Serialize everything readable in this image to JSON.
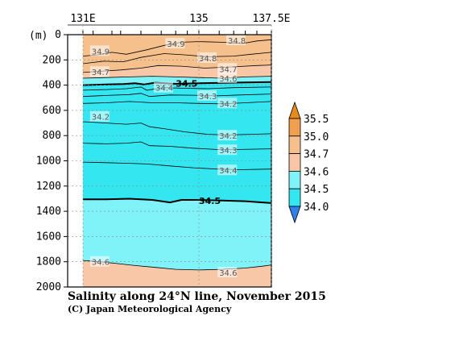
{
  "chart_data": {
    "type": "contour",
    "title": "Salinity along 24°N line, November 2015",
    "credit": "(C) Japan Meteorological Agency",
    "x_axis": {
      "range": [
        131,
        137.5
      ],
      "ticks": [
        {
          "value": 131,
          "label": "131E"
        },
        {
          "value": 135,
          "label": "135"
        },
        {
          "value": 137.5,
          "label": "137.5E"
        }
      ]
    },
    "y_axis": {
      "unit_label": "(m)",
      "range": [
        0,
        2000
      ],
      "inverted": true,
      "ticks": [
        0,
        200,
        400,
        600,
        800,
        1000,
        1200,
        1400,
        1600,
        1800,
        2000
      ]
    },
    "colorbar": {
      "levels": [
        34.0,
        34.5,
        34.6,
        34.7,
        35.0,
        35.5
      ],
      "labels": [
        "35.5",
        "35.0",
        "34.7",
        "34.6",
        "34.5",
        "34.0"
      ],
      "bands": [
        {
          "from": 34.0,
          "to": 34.5,
          "color": "#33e6f0"
        },
        {
          "from": 34.5,
          "to": 34.6,
          "color": "#7ff3f8"
        },
        {
          "from": 34.6,
          "to": 34.7,
          "color": "#f7c7a8"
        },
        {
          "from": 34.7,
          "to": 35.0,
          "color": "#f6c08c"
        },
        {
          "from": 35.0,
          "to": 35.5,
          "color": "#f0a050"
        }
      ],
      "under_color": "#2f80e8",
      "over_color": "#e88a1a"
    },
    "regions": [
      {
        "name": "surface 34.7-35.0",
        "top": [
          [
            131,
            0
          ],
          [
            137.5,
            0
          ]
        ],
        "bottom_depth": 330,
        "color": "#f6c08c"
      },
      {
        "name": "34.6-34.7 layer",
        "bottom_depth": 380,
        "color": "#f7c7a8"
      },
      {
        "name": "34.5-34.6 layer",
        "bottom_depth": 420,
        "color": "#7ff3f8"
      },
      {
        "name": "intermediate <34.5",
        "bottom_depth": 1330,
        "color": "#33e6f0"
      },
      {
        "name": "deep 34.5-34.6",
        "bottom_depth": 1820,
        "color": "#7ff3f8"
      },
      {
        "name": "bottom 34.6-34.7",
        "bottom_depth": 2000,
        "color": "#f7c7a8"
      }
    ],
    "contour_labels": [
      {
        "text": "34.9",
        "lon": 131.3,
        "depth": 130,
        "bold": false
      },
      {
        "text": "34.9",
        "lon": 133.9,
        "depth": 70,
        "bold": false
      },
      {
        "text": "34.8",
        "lon": 136.0,
        "depth": 45,
        "bold": false
      },
      {
        "text": "34.8",
        "lon": 135.0,
        "depth": 185,
        "bold": false
      },
      {
        "text": "34.7",
        "lon": 131.3,
        "depth": 295,
        "bold": false
      },
      {
        "text": "34.7",
        "lon": 135.7,
        "depth": 270,
        "bold": false
      },
      {
        "text": "34.6",
        "lon": 135.7,
        "depth": 345,
        "bold": false
      },
      {
        "text": "34.5",
        "lon": 134.2,
        "depth": 385,
        "bold": true
      },
      {
        "text": "34.4",
        "lon": 133.5,
        "depth": 420,
        "bold": false
      },
      {
        "text": "34.3",
        "lon": 135.0,
        "depth": 485,
        "bold": false
      },
      {
        "text": "34.2",
        "lon": 135.7,
        "depth": 545,
        "bold": false
      },
      {
        "text": "34.2",
        "lon": 131.3,
        "depth": 650,
        "bold": false
      },
      {
        "text": "34.2",
        "lon": 135.7,
        "depth": 800,
        "bold": false
      },
      {
        "text": "34.3",
        "lon": 135.7,
        "depth": 915,
        "bold": false
      },
      {
        "text": "34.4",
        "lon": 135.7,
        "depth": 1075,
        "bold": false
      },
      {
        "text": "34.5",
        "lon": 135.0,
        "depth": 1315,
        "bold": true
      },
      {
        "text": "34.6",
        "lon": 131.3,
        "depth": 1800,
        "bold": false
      },
      {
        "text": "34.6",
        "lon": 135.7,
        "depth": 1885,
        "bold": false
      }
    ],
    "contours": [
      {
        "level": 34.9,
        "bold": false,
        "points": [
          [
            131.0,
            170
          ],
          [
            131.5,
            160
          ],
          [
            132.0,
            140
          ],
          [
            132.5,
            155
          ],
          [
            133.2,
            120
          ],
          [
            133.8,
            85
          ],
          [
            134.4,
            60
          ],
          [
            135.0,
            55
          ],
          [
            135.8,
            60
          ],
          [
            136.5,
            70
          ],
          [
            137.0,
            50
          ],
          [
            137.5,
            40
          ]
        ]
      },
      {
        "level": 34.8,
        "bold": false,
        "points": [
          [
            131.0,
            230
          ],
          [
            131.7,
            210
          ],
          [
            132.4,
            215
          ],
          [
            133.0,
            180
          ],
          [
            133.8,
            150
          ],
          [
            134.5,
            160
          ],
          [
            135.3,
            175
          ],
          [
            136.2,
            170
          ],
          [
            136.8,
            155
          ],
          [
            137.5,
            140
          ]
        ]
      },
      {
        "level": 34.7,
        "bold": false,
        "points": [
          [
            131.0,
            300
          ],
          [
            131.6,
            290
          ],
          [
            132.3,
            280
          ],
          [
            133.0,
            265
          ],
          [
            133.6,
            245
          ],
          [
            134.4,
            250
          ],
          [
            135.2,
            265
          ],
          [
            136.2,
            255
          ],
          [
            137.0,
            245
          ],
          [
            137.5,
            240
          ]
        ]
      },
      {
        "level": 34.6,
        "bold": false,
        "points": [
          [
            131.0,
            345
          ],
          [
            131.8,
            340
          ],
          [
            132.6,
            335
          ],
          [
            133.4,
            330
          ],
          [
            134.2,
            335
          ],
          [
            135.0,
            340
          ],
          [
            135.8,
            345
          ],
          [
            136.6,
            335
          ],
          [
            137.5,
            330
          ]
        ]
      },
      {
        "level": 34.5,
        "bold": true,
        "points": [
          [
            131.0,
            400
          ],
          [
            131.8,
            395
          ],
          [
            132.4,
            392
          ],
          [
            132.8,
            385
          ],
          [
            133.1,
            395
          ],
          [
            133.5,
            380
          ],
          [
            134.2,
            390
          ],
          [
            135.0,
            385
          ],
          [
            135.8,
            382
          ],
          [
            136.6,
            378
          ],
          [
            137.5,
            375
          ]
        ]
      },
      {
        "level": 34.4,
        "bold": false,
        "points": [
          [
            131.0,
            440
          ],
          [
            131.8,
            435
          ],
          [
            132.5,
            428
          ],
          [
            133.0,
            415
          ],
          [
            133.2,
            440
          ],
          [
            133.8,
            420
          ],
          [
            134.5,
            425
          ],
          [
            135.3,
            428
          ],
          [
            136.2,
            420
          ],
          [
            137.5,
            415
          ]
        ]
      },
      {
        "level": 34.3,
        "bold": false,
        "points": [
          [
            131.0,
            490
          ],
          [
            131.8,
            482
          ],
          [
            132.6,
            475
          ],
          [
            133.0,
            465
          ],
          [
            133.3,
            490
          ],
          [
            134.0,
            478
          ],
          [
            134.8,
            480
          ],
          [
            135.6,
            485
          ],
          [
            136.4,
            478
          ],
          [
            137.5,
            470
          ]
        ]
      },
      {
        "level": 34.2,
        "bold": false,
        "points": [
          [
            131.0,
            545
          ],
          [
            131.8,
            540
          ],
          [
            132.6,
            530
          ],
          [
            133.4,
            540
          ],
          [
            134.2,
            540
          ],
          [
            135.0,
            545
          ],
          [
            135.8,
            548
          ],
          [
            136.6,
            540
          ],
          [
            137.5,
            530
          ]
        ]
      },
      {
        "level": 34.2,
        "bold": false,
        "points": [
          [
            131.0,
            690
          ],
          [
            131.8,
            700
          ],
          [
            132.5,
            710
          ],
          [
            133.0,
            700
          ],
          [
            133.3,
            730
          ],
          [
            133.8,
            745
          ],
          [
            134.5,
            770
          ],
          [
            135.3,
            790
          ],
          [
            136.0,
            795
          ],
          [
            136.8,
            790
          ],
          [
            137.5,
            785
          ]
        ]
      },
      {
        "level": 34.3,
        "bold": false,
        "points": [
          [
            131.0,
            860
          ],
          [
            131.8,
            865
          ],
          [
            132.5,
            860
          ],
          [
            133.0,
            850
          ],
          [
            133.3,
            880
          ],
          [
            134.0,
            885
          ],
          [
            134.8,
            900
          ],
          [
            135.6,
            910
          ],
          [
            136.4,
            910
          ],
          [
            137.5,
            905
          ]
        ]
      },
      {
        "level": 34.4,
        "bold": false,
        "points": [
          [
            131.0,
            1010
          ],
          [
            131.8,
            1015
          ],
          [
            132.6,
            1020
          ],
          [
            133.2,
            1025
          ],
          [
            134.0,
            1040
          ],
          [
            134.8,
            1055
          ],
          [
            135.6,
            1065
          ],
          [
            136.4,
            1070
          ],
          [
            137.5,
            1065
          ]
        ]
      },
      {
        "level": 34.5,
        "bold": true,
        "points": [
          [
            131.0,
            1305
          ],
          [
            131.8,
            1305
          ],
          [
            132.6,
            1300
          ],
          [
            133.4,
            1310
          ],
          [
            134.0,
            1330
          ],
          [
            134.4,
            1310
          ],
          [
            135.0,
            1310
          ],
          [
            135.8,
            1315
          ],
          [
            136.6,
            1320
          ],
          [
            137.5,
            1335
          ]
        ]
      },
      {
        "level": 34.6,
        "bold": false,
        "points": [
          [
            131.0,
            1790
          ],
          [
            131.6,
            1800
          ],
          [
            132.2,
            1815
          ],
          [
            132.8,
            1830
          ],
          [
            133.5,
            1845
          ],
          [
            134.2,
            1860
          ],
          [
            135.0,
            1865
          ],
          [
            135.8,
            1860
          ],
          [
            136.6,
            1850
          ],
          [
            137.2,
            1835
          ],
          [
            137.5,
            1825
          ]
        ]
      }
    ]
  }
}
